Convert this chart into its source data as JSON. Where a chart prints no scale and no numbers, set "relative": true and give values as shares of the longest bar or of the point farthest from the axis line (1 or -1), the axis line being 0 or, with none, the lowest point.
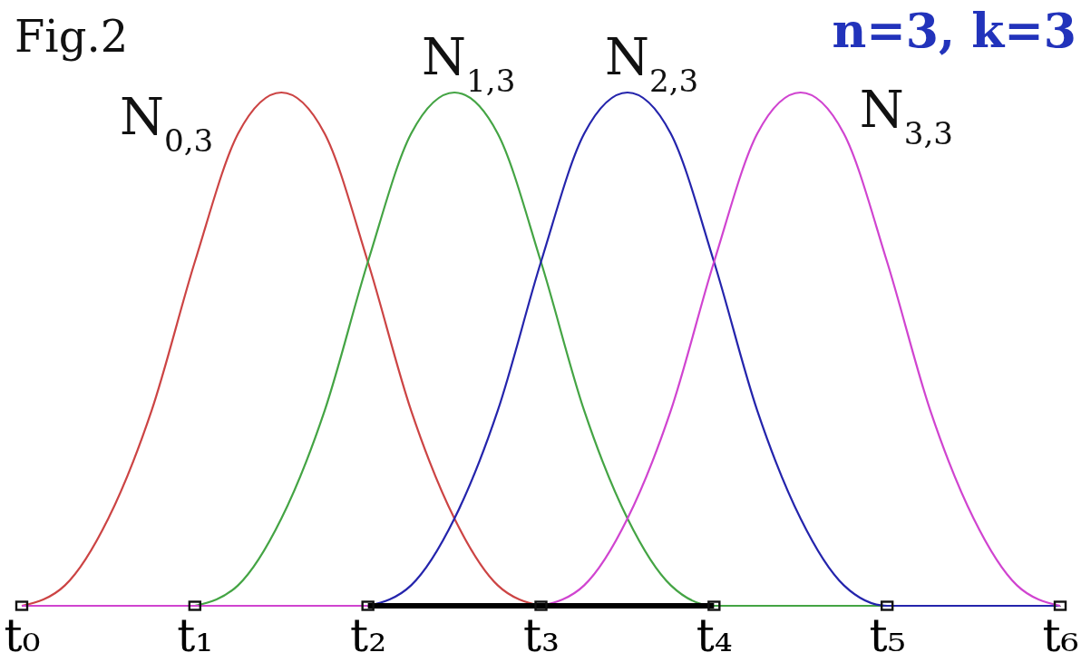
{
  "chart_data": {
    "type": "line",
    "title": "Fig.2",
    "annotations": [
      "n=3, k=3"
    ],
    "relative": true,
    "categories": [
      "t₀",
      null,
      null,
      null,
      "t₁",
      null,
      null,
      null,
      "t₂",
      null,
      null,
      null,
      "t₃",
      null,
      null,
      null,
      "t₄",
      null,
      null,
      null,
      "t₅",
      null,
      null,
      null,
      "t₆"
    ],
    "series": [
      {
        "name": "N$_{0,3}$",
        "color": "#cc4444",
        "values": [
          0,
          0.04,
          0.17,
          0.38,
          0.67,
          0.92,
          1,
          0.92,
          0.67,
          0.38,
          0.17,
          0.04,
          0,
          null,
          null,
          null,
          null,
          null,
          null,
          null,
          null,
          null,
          null,
          null,
          null
        ]
      },
      {
        "name": "N$_{1,3}$",
        "color": "#44a444",
        "values": [
          null,
          null,
          null,
          null,
          0,
          0.04,
          0.17,
          0.38,
          0.67,
          0.92,
          1,
          0.92,
          0.67,
          0.38,
          0.17,
          0.04,
          0,
          0,
          0,
          0,
          0,
          null,
          null,
          null,
          null
        ]
      },
      {
        "name": "N$_{2,3}$",
        "color": "#2424ac",
        "values": [
          null,
          null,
          null,
          null,
          null,
          null,
          null,
          null,
          0,
          0.04,
          0.17,
          0.38,
          0.67,
          0.92,
          1,
          0.92,
          0.67,
          0.38,
          0.17,
          0.04,
          0,
          0,
          0,
          0,
          0
        ]
      },
      {
        "name": "N$_{3,3}$",
        "color": "#d044d0",
        "values": [
          0,
          0,
          0,
          0,
          0,
          0,
          0,
          0,
          0,
          null,
          null,
          null,
          0,
          0.04,
          0.17,
          0.38,
          0.67,
          0.92,
          1,
          0.92,
          0.67,
          0.38,
          0.17,
          0.04,
          0
        ]
      },
      {
        "x": [
          "t₂",
          "t₄"
        ],
        "values": [
          0,
          0
        ],
        "color": "#000000"
      }
    ]
  }
}
